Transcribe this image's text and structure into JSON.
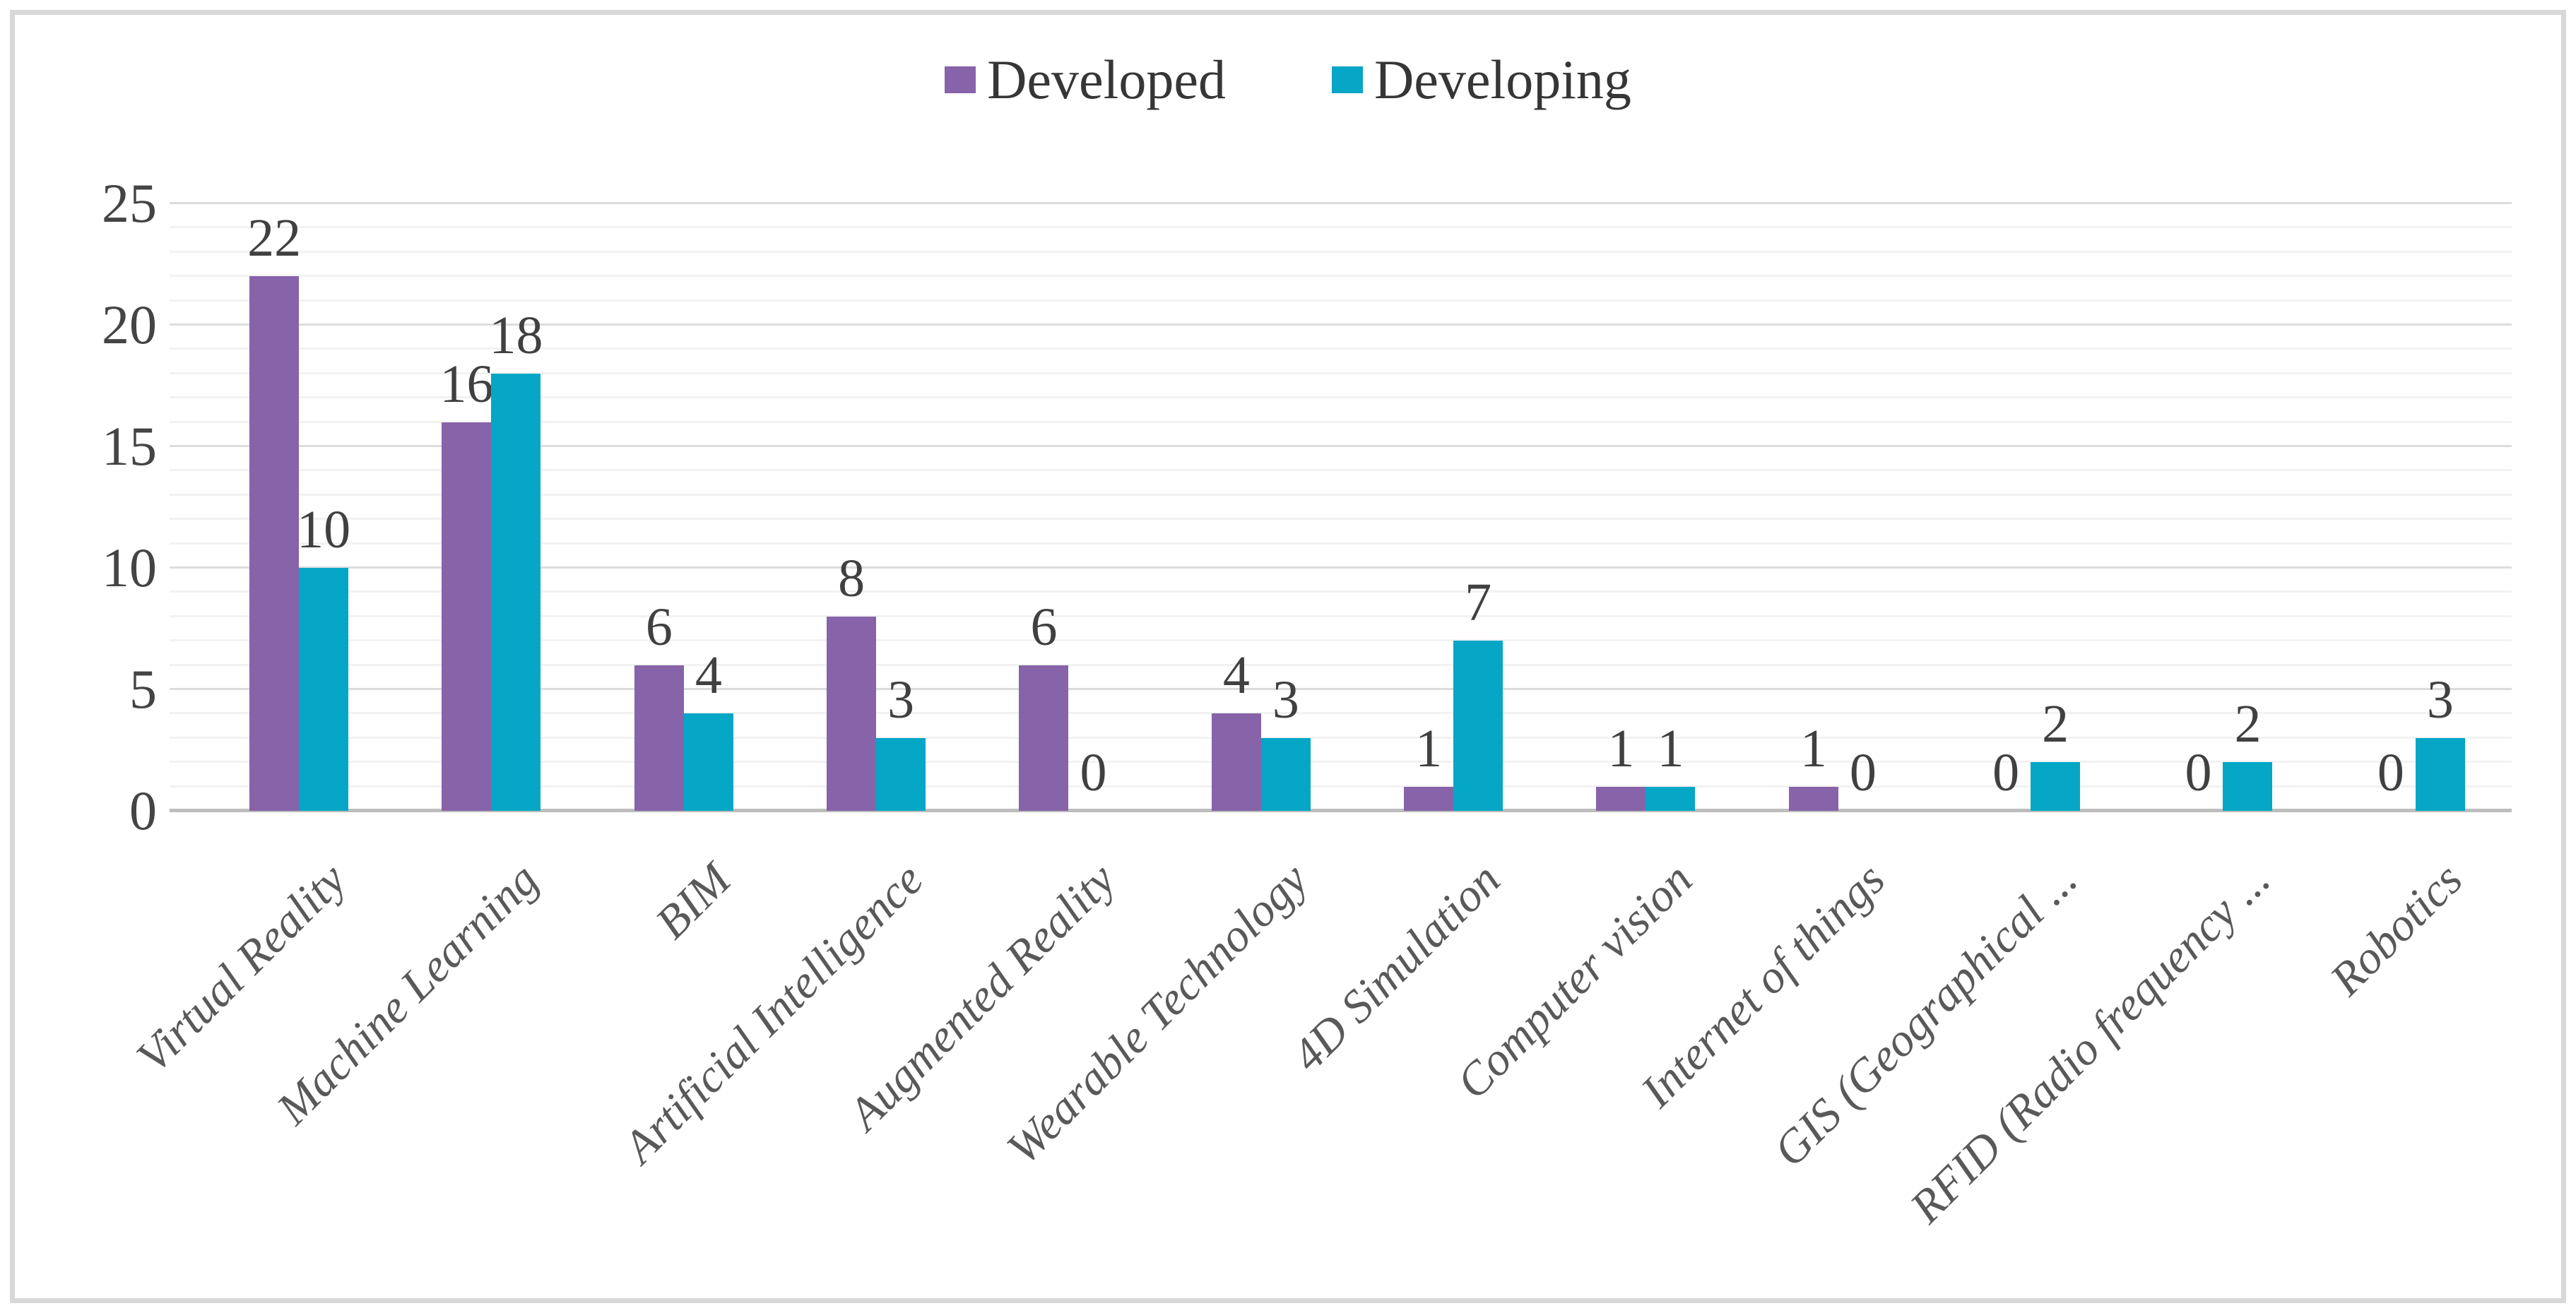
{
  "chart_data": {
    "type": "bar",
    "title": "",
    "xlabel": "",
    "ylabel": "",
    "categories": [
      "Virtual Reality",
      "Machine Learning",
      "BIM",
      "Artificial Intelligence",
      "Augmented Reality",
      "Wearable Technology",
      "4D Simulation",
      "Computer vision",
      "Internet of things",
      "GIS (Geographical ...",
      "RFID (Radio frequency ...",
      "Robotics"
    ],
    "series": [
      {
        "name": "Developed",
        "color": "#8763AA",
        "values": [
          22,
          16,
          6,
          8,
          6,
          4,
          1,
          1,
          1,
          0,
          0,
          0
        ]
      },
      {
        "name": "Developing",
        "color": "#05A6C6",
        "values": [
          10,
          18,
          4,
          3,
          0,
          3,
          7,
          1,
          0,
          2,
          2,
          3
        ]
      }
    ],
    "ylim": [
      0,
      25
    ],
    "yticks": [
      0,
      5,
      10,
      15,
      20,
      25
    ],
    "grid": {
      "horizontal": true,
      "minor_step": 1,
      "major_step": 5
    },
    "legend_position": "top-center",
    "data_labels": "outside end of each bar",
    "x_tick_rotation_deg": -45
  },
  "colors": {
    "frame_border": "#d8d8d8",
    "grid_minor": "#f2f2f2",
    "grid_major": "#dcdcdc",
    "axis_line": "#bdbdbd",
    "tick_text": "#444444",
    "data_label_text": "#404040",
    "category_text": "#595959",
    "legend_text": "#363636",
    "background": "#ffffff"
  }
}
